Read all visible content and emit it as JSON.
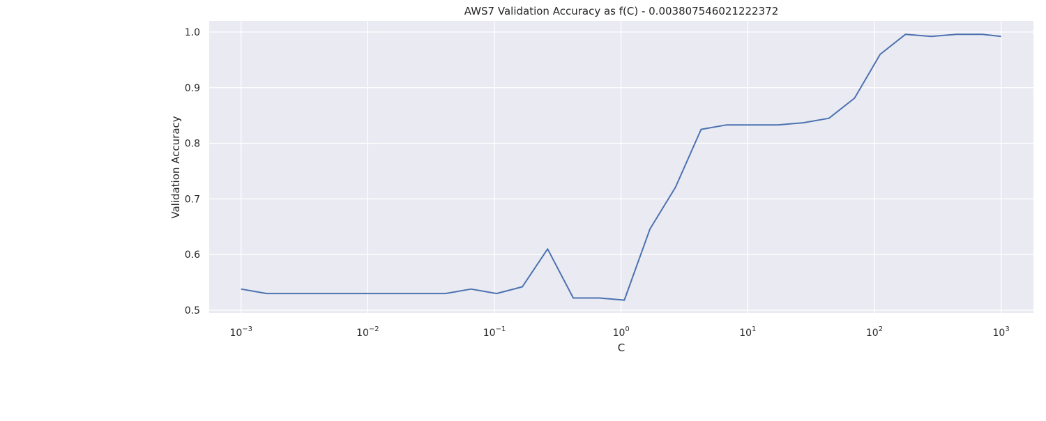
{
  "chart_data": {
    "type": "line",
    "title": "AWS7 Validation Accuracy as f(C) - 0.003807546021222372",
    "xlabel": "C",
    "ylabel": "Validation Accuracy",
    "x_scale": "log",
    "xlim": [
      0.00056,
      1800
    ],
    "ylim": [
      0.495,
      1.02
    ],
    "grid": true,
    "background": "#eaeaf2",
    "line_color": "#4c72b0",
    "x_ticks": [
      {
        "base": "10",
        "exp": "−3",
        "value": 0.001
      },
      {
        "base": "10",
        "exp": "−2",
        "value": 0.01
      },
      {
        "base": "10",
        "exp": "−1",
        "value": 0.1
      },
      {
        "base": "10",
        "exp": "0",
        "value": 1
      },
      {
        "base": "10",
        "exp": "1",
        "value": 10
      },
      {
        "base": "10",
        "exp": "2",
        "value": 100
      },
      {
        "base": "10",
        "exp": "3",
        "value": 1000
      }
    ],
    "y_ticks": [
      {
        "label": "0.5",
        "value": 0.5
      },
      {
        "label": "0.6",
        "value": 0.6
      },
      {
        "label": "0.7",
        "value": 0.7
      },
      {
        "label": "0.8",
        "value": 0.8
      },
      {
        "label": "0.9",
        "value": 0.9
      },
      {
        "label": "1.0",
        "value": 1.0
      }
    ],
    "series": [
      {
        "x": [
          0.001,
          0.00159,
          0.00253,
          0.00403,
          0.00641,
          0.0102,
          0.0162,
          0.0258,
          0.0411,
          0.0654,
          0.104,
          0.166,
          0.263,
          0.419,
          0.668,
          1.06,
          1.69,
          2.69,
          4.28,
          6.81,
          10.8,
          17.3,
          27.5,
          43.7,
          69.6,
          111,
          176,
          280,
          446,
          710,
          1000
        ],
        "y": [
          0.538,
          0.53,
          0.53,
          0.53,
          0.53,
          0.53,
          0.53,
          0.53,
          0.53,
          0.538,
          0.53,
          0.542,
          0.61,
          0.522,
          0.522,
          0.518,
          0.646,
          0.721,
          0.825,
          0.833,
          0.833,
          0.833,
          0.837,
          0.845,
          0.881,
          0.96,
          0.996,
          0.992,
          0.996,
          0.996,
          0.992
        ]
      }
    ]
  }
}
